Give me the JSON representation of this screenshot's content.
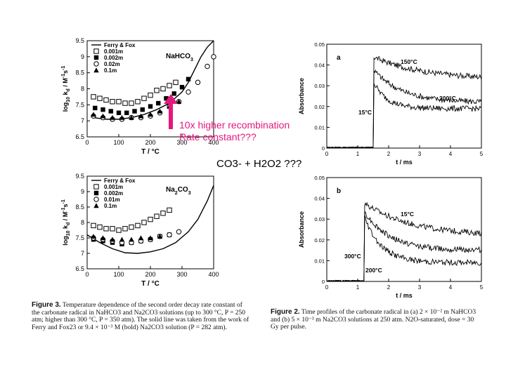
{
  "chart_data": [
    {
      "id": "fig3-top",
      "type": "scatter",
      "title": "NaHCO3",
      "xlabel": "T / °C",
      "ylabel": "log10 kd / M⁻¹s⁻¹",
      "xlim": [
        0,
        400
      ],
      "ylim": [
        6.5,
        9.5
      ],
      "xticks": [
        "0",
        "100",
        "200",
        "300",
        "400"
      ],
      "yticks": [
        "6.5",
        "7",
        "7.5",
        "8",
        "8.5",
        "9",
        "9.5"
      ],
      "legend": [
        "Ferry & Fox",
        "0.001m",
        "0.002m",
        "0.02m",
        "0.1m"
      ],
      "legend_position": "top-left",
      "curve": {
        "name": "Ferry & Fox",
        "x": [
          20,
          60,
          100,
          140,
          180,
          220,
          260,
          300,
          320,
          340,
          360,
          380,
          400
        ],
        "y": [
          7.1,
          7.05,
          7.05,
          7.1,
          7.2,
          7.35,
          7.55,
          7.9,
          8.2,
          8.6,
          9.0,
          9.3,
          9.5
        ]
      },
      "series": [
        {
          "name": "0.001m",
          "marker": "open-square",
          "x": [
            20,
            40,
            60,
            80,
            100,
            120,
            140,
            160,
            180,
            200,
            220,
            240,
            260,
            280
          ],
          "y": [
            7.75,
            7.7,
            7.65,
            7.6,
            7.6,
            7.55,
            7.55,
            7.6,
            7.7,
            7.8,
            7.95,
            8.0,
            8.1,
            8.2
          ]
        },
        {
          "name": "0.002m",
          "marker": "filled-square",
          "x": [
            25,
            50,
            75,
            100,
            125,
            150,
            175,
            200,
            225,
            250,
            275,
            300,
            320
          ],
          "y": [
            7.4,
            7.35,
            7.3,
            7.25,
            7.25,
            7.3,
            7.35,
            7.45,
            7.55,
            7.7,
            7.85,
            8.05,
            8.3
          ]
        },
        {
          "name": "0.02m",
          "marker": "open-circle",
          "x": [
            20,
            50,
            80,
            110,
            140,
            170,
            200,
            230,
            260,
            290,
            320,
            350,
            380,
            400
          ],
          "y": [
            7.15,
            7.1,
            7.05,
            7.05,
            7.1,
            7.1,
            7.15,
            7.25,
            7.45,
            7.6,
            7.9,
            8.2,
            8.7,
            9.0
          ]
        },
        {
          "name": "0.1m",
          "marker": "filled-triangle",
          "x": [
            20,
            50,
            80,
            110,
            140,
            170,
            200,
            230,
            260,
            290
          ],
          "y": [
            7.2,
            7.15,
            7.1,
            7.1,
            7.1,
            7.15,
            7.2,
            7.3,
            7.45,
            7.6
          ]
        }
      ]
    },
    {
      "id": "fig3-bottom",
      "type": "scatter",
      "title": "Na2CO3",
      "xlabel": "T / °C",
      "ylabel": "log10 kd / M⁻¹s⁻¹",
      "xlim": [
        0,
        400
      ],
      "ylim": [
        6.5,
        9.5
      ],
      "xticks": [
        "0",
        "100",
        "200",
        "300",
        "400"
      ],
      "yticks": [
        "6.5",
        "7",
        "7.5",
        "8",
        "8.5",
        "9",
        "9.5"
      ],
      "legend": [
        "Ferry & Fox",
        "0.001m",
        "0.002m",
        "0.01m",
        "0.1m"
      ],
      "legend_position": "top-left",
      "curve": {
        "name": "Ferry & Fox",
        "x": [
          0,
          40,
          80,
          120,
          160,
          200,
          240,
          280,
          320,
          350,
          380,
          400
        ],
        "y": [
          7.6,
          7.35,
          7.15,
          7.02,
          7.0,
          7.05,
          7.15,
          7.35,
          7.7,
          8.1,
          8.7,
          9.2
        ]
      },
      "series": [
        {
          "name": "0.001m",
          "marker": "open-square",
          "x": [
            20,
            40,
            60,
            80,
            100,
            120,
            140,
            160,
            180,
            200,
            220,
            240,
            260
          ],
          "y": [
            7.9,
            7.85,
            7.8,
            7.8,
            7.75,
            7.8,
            7.85,
            7.9,
            8.0,
            8.1,
            8.2,
            8.3,
            8.4
          ]
        },
        {
          "name": "0.002m",
          "marker": "filled-square",
          "x": [
            20,
            50,
            80,
            110,
            140,
            170,
            200,
            230,
            260
          ],
          "y": [
            7.45,
            7.4,
            7.35,
            7.3,
            7.35,
            7.4,
            7.45,
            7.55,
            7.6
          ]
        },
        {
          "name": "0.01m",
          "marker": "open-circle",
          "x": [
            20,
            50,
            80,
            110,
            140,
            170,
            200,
            230,
            260,
            290
          ],
          "y": [
            7.5,
            7.45,
            7.4,
            7.35,
            7.35,
            7.4,
            7.45,
            7.55,
            7.6,
            7.7
          ]
        },
        {
          "name": "0.1m",
          "marker": "filled-triangle",
          "x": [
            20,
            50,
            80,
            110,
            140,
            170,
            200,
            230
          ],
          "y": [
            7.55,
            7.5,
            7.45,
            7.45,
            7.45,
            7.5,
            7.5,
            7.55
          ]
        }
      ]
    },
    {
      "id": "fig2-a",
      "type": "line",
      "panel": "a",
      "xlabel": "t / ms",
      "ylabel": "Absorbance",
      "xlim": [
        0,
        5
      ],
      "ylim": [
        0,
        0.05
      ],
      "xticks": [
        "0",
        "1",
        "2",
        "3",
        "4",
        "5"
      ],
      "yticks": [
        "0",
        "0.01",
        "0.02",
        "0.03",
        "0.04",
        "0.05"
      ],
      "pulse_time_ms": 1.5,
      "series": [
        {
          "name": "150°C",
          "peak": 0.044,
          "end": 0.033,
          "decay_ms": 1.6
        },
        {
          "name": "300°C",
          "peak": 0.038,
          "end": 0.022,
          "decay_ms": 0.9
        },
        {
          "name": "15°C",
          "peak": 0.032,
          "end": 0.019,
          "decay_ms": 0.45
        }
      ]
    },
    {
      "id": "fig2-b",
      "type": "line",
      "panel": "b",
      "xlabel": "t / ms",
      "ylabel": "Absorbance",
      "xlim": [
        0,
        5
      ],
      "ylim": [
        0,
        0.05
      ],
      "xticks": [
        "0",
        "1",
        "2",
        "3",
        "4",
        "5"
      ],
      "yticks": [
        "0",
        "0.01",
        "0.02",
        "0.03",
        "0.04",
        "0.05"
      ],
      "pulse_time_ms": 1.2,
      "series": [
        {
          "name": "15°C",
          "peak": 0.038,
          "end": 0.022,
          "decay_ms": 1.5
        },
        {
          "name": "300°C",
          "peak": 0.034,
          "end": 0.015,
          "decay_ms": 0.8
        },
        {
          "name": "200°C",
          "peak": 0.032,
          "end": 0.009,
          "decay_ms": 0.55
        }
      ]
    }
  ],
  "labels": {
    "top_title_main": "NaHCO",
    "top_title_sub": "3",
    "bottom_title_main": "Na",
    "bottom_title_sub1": "2",
    "bottom_title_mid": "CO",
    "bottom_title_sub2": "3",
    "y_axis_log": "log",
    "y_axis_10": "10",
    "y_axis_k": "k",
    "y_axis_d": "d",
    "y_axis_unit": "/ M",
    "y_axis_m1": "-1",
    "y_axis_s": "s",
    "y_axis_s1": "-1",
    "panel_a": "a",
    "panel_b": "b"
  },
  "annotations": {
    "recombination_line1": "10x higher recombination",
    "recombination_line2": "Rate constant???",
    "reaction_note": "CO3- + H2O2 ???",
    "arrow_color": "#e5177e"
  },
  "captions": {
    "fig3_label": "Figure 3.",
    "fig3_text": "Temperature dependence of the second order decay rate constant of the carbonate radical in NaHCO3 and Na2CO3 solutions (up to 300 °C, P = 250 atm; higher than 300 °C, P = 350 atm). The solid line was taken from the work of Ferry and Fox23 or 9.4 × 10⁻³ M (bold) Na2CO3 solution (P = 282 atm).",
    "fig2_label": "Figure 2.",
    "fig2_text": "Time profiles of the carbonate radical in (a) 2 × 10⁻² m NaHCO3 and (b) 5 × 10⁻³ m Na2CO3 solutions at 250 atm. N2O-saturated, dose = 30 Gy per pulse."
  }
}
